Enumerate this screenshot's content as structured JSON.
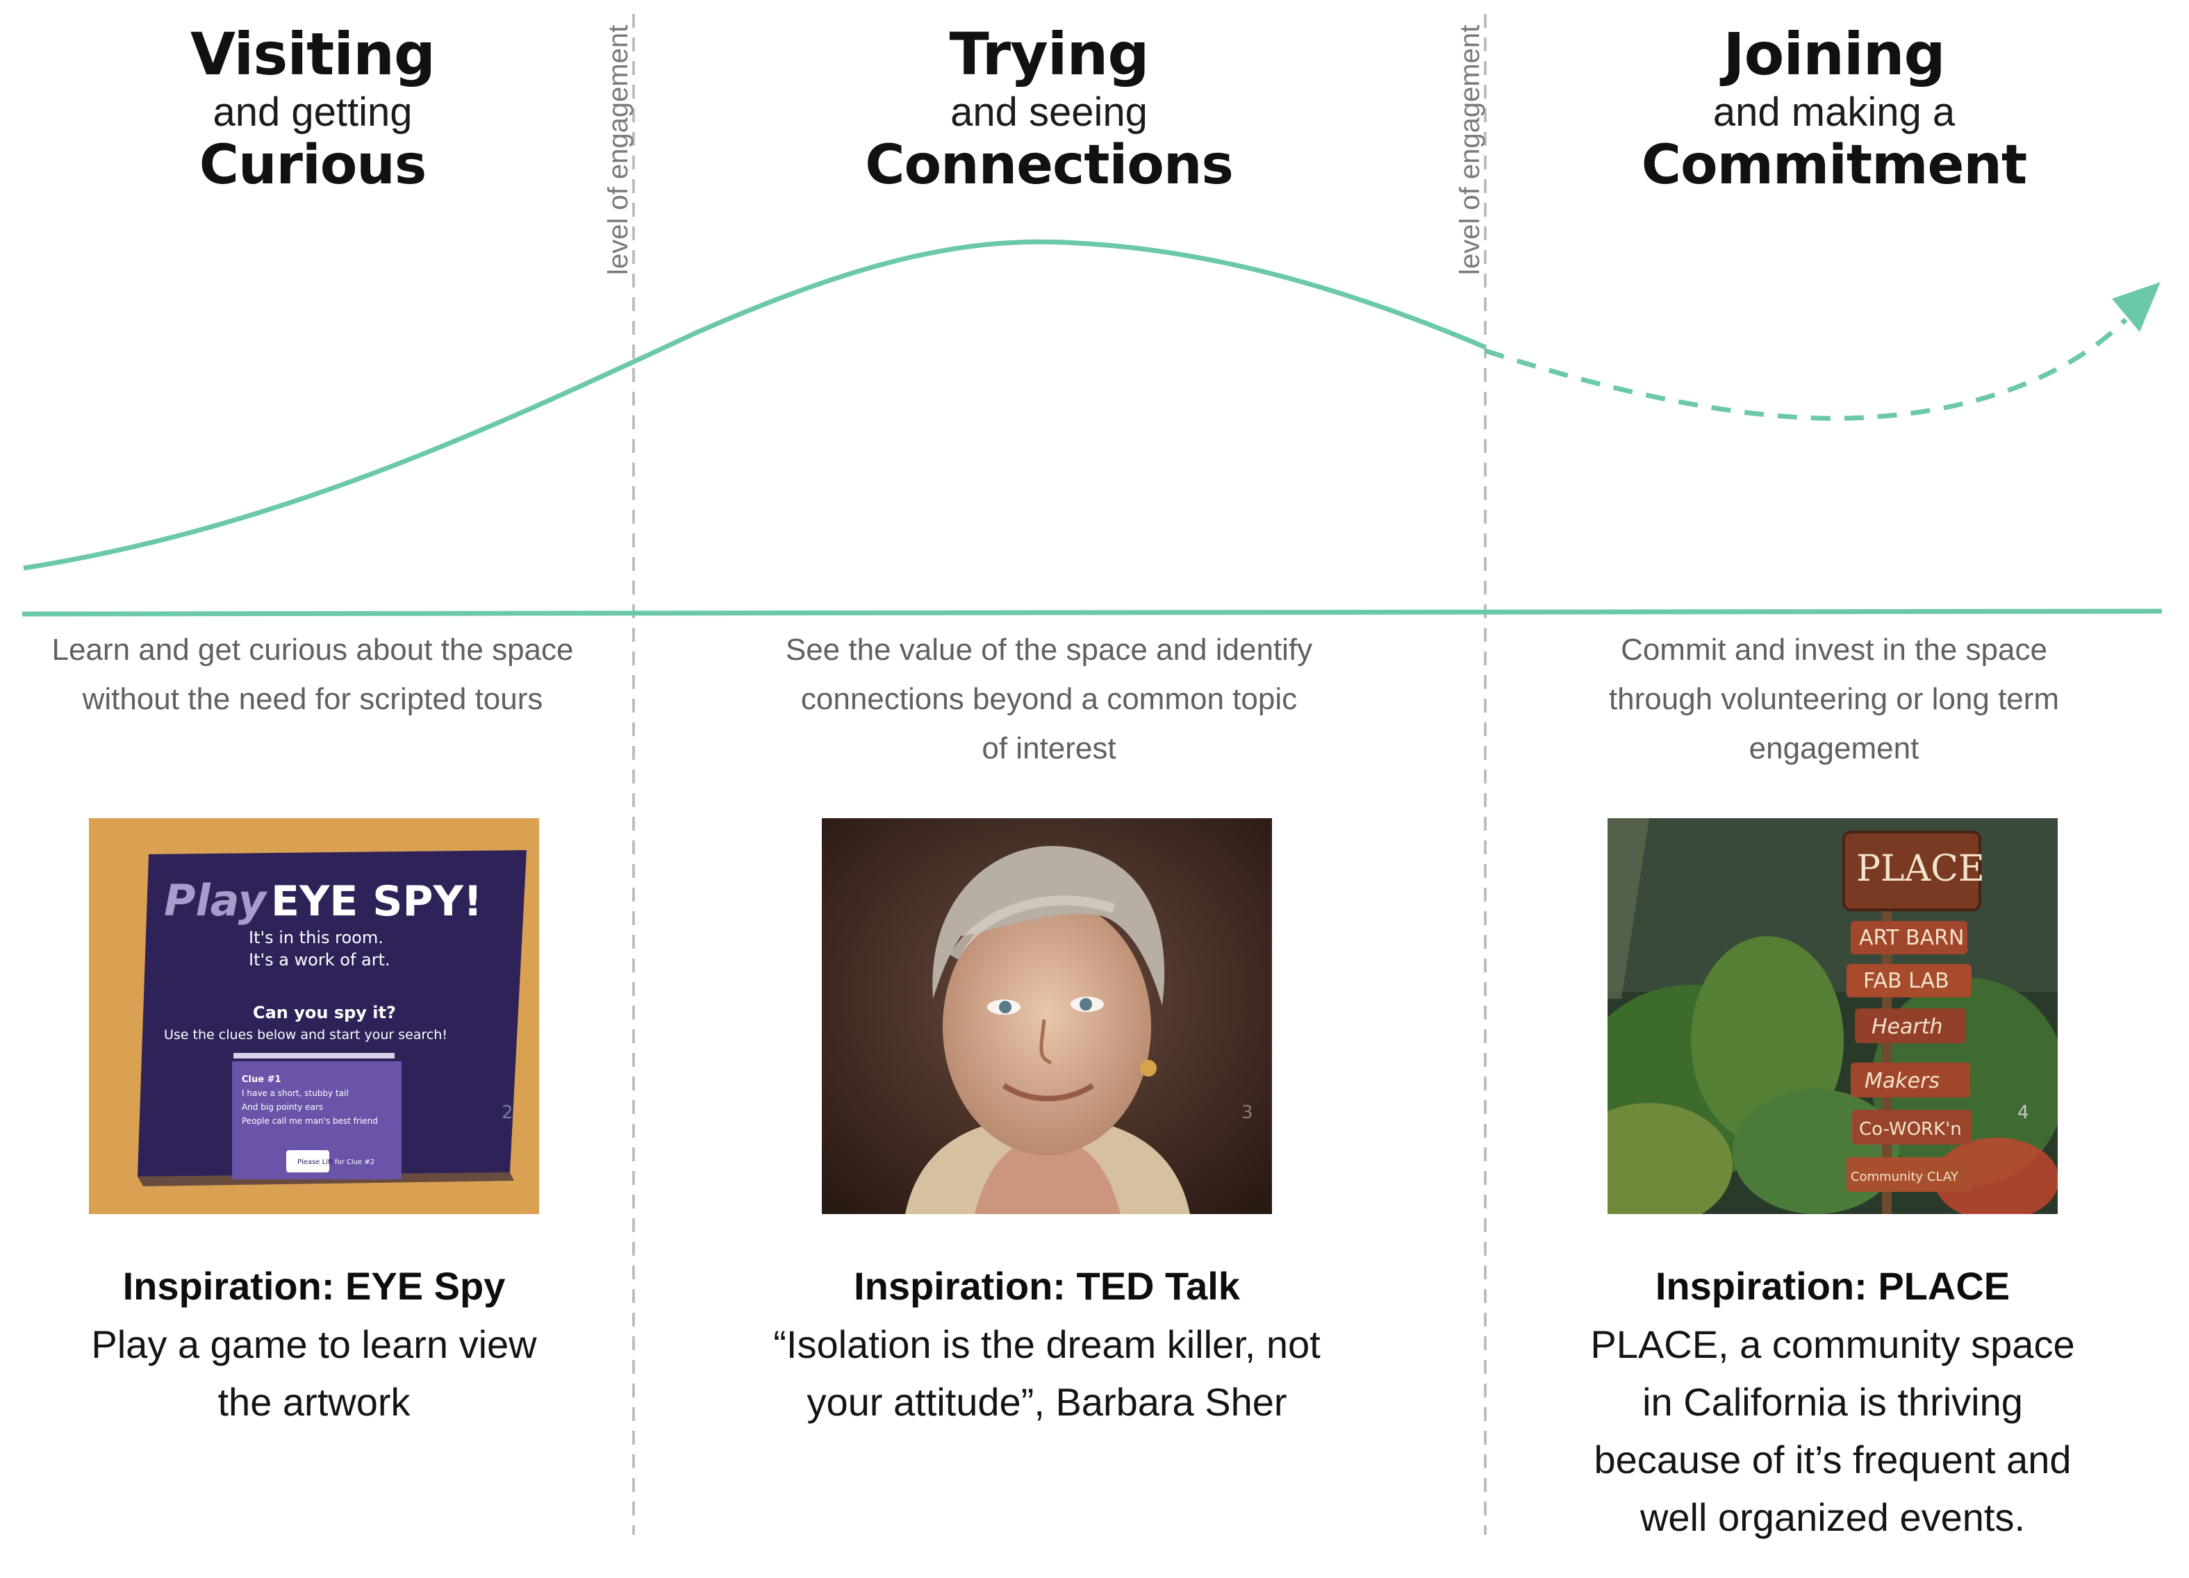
{
  "colors": {
    "curve": "#6cc9a8",
    "divider": "#bdbdbd",
    "muted_text": "#606060"
  },
  "divider_label": "level of engagement",
  "stages": [
    {
      "title": "Visiting",
      "subtitle": "and getting",
      "emphasis": "Curious",
      "description": "Learn and get curious about the space without the need for scripted tours",
      "photo": {
        "heading": "Play",
        "heading_bold": "EYE SPY!",
        "line1": "It's in this room.",
        "line2": "It's a work of art.",
        "question": "Can you spy it?",
        "instruction": "Use the clues below and start your search!",
        "clue_title": "Clue #1",
        "clue_lines": [
          "I have a short, stubby tail",
          "And big pointy ears",
          "People call me man's best friend"
        ],
        "tab_left": "Please Lift",
        "tab_right": "for Clue #2",
        "page_number": "2"
      },
      "inspiration_title": "Inspiration: EYE Spy",
      "inspiration_body": "Play a game to learn view the artwork"
    },
    {
      "title": "Trying",
      "subtitle": "and seeing",
      "emphasis": "Connections",
      "description": "See the value of the space and identify connections beyond a common topic of interest",
      "photo": {
        "page_number": "3"
      },
      "inspiration_title": "Inspiration: TED Talk",
      "inspiration_body": "“Isolation is the dream killer, not your attitude”, Barbara Sher"
    },
    {
      "title": "Joining",
      "subtitle": "and making a",
      "emphasis": "Commitment",
      "description": "Commit and invest in the space through volunteering or long term engagement",
      "photo": {
        "sign_top": "PLACE",
        "signs": [
          "ART BARN",
          "FAB LAB",
          "Hearth",
          "Makers",
          "Co-WORK'n",
          "Community CLAY"
        ],
        "page_number": "4"
      },
      "inspiration_title": "Inspiration: PLACE",
      "inspiration_body": "PLACE, a community space in California is thriving because of it’s frequent and well organized events."
    }
  ]
}
